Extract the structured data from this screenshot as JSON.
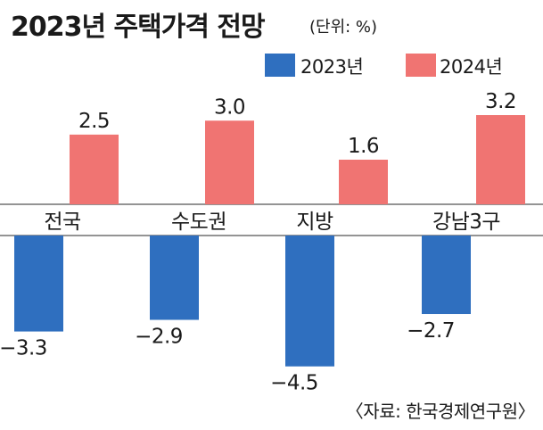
{
  "chart_data": {
    "type": "bar",
    "title": "2023년 주택가격 전망",
    "unit": "(단위: %)",
    "categories": [
      "전국",
      "수도권",
      "지방",
      "강남3구"
    ],
    "series": [
      {
        "name": "2023년",
        "values": [
          -3.3,
          -2.9,
          -4.5,
          -2.7
        ],
        "labels": [
          "−3.3",
          "−2.9",
          "−4.5",
          "−2.7"
        ],
        "color": "#2f6fbf"
      },
      {
        "name": "2024년",
        "values": [
          2.5,
          3.0,
          1.6,
          3.2
        ],
        "labels": [
          "2.5",
          "3.0",
          "1.6",
          "3.2"
        ],
        "color": "#f07472"
      }
    ],
    "legend": "top-right",
    "grid": false,
    "source": "〈자료: 한국경제연구원〉"
  }
}
